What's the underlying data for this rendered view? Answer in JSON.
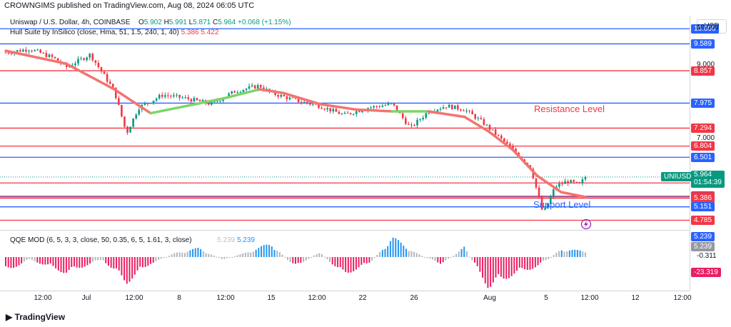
{
  "publisher": "CROWNGIMS published on TradingView.com, Aug 08, 2024 06:05 UTC",
  "legend": {
    "symbol": "Uniswap / U.S. Dollar, 4h, COINBASE",
    "o_label": "O",
    "o_value": "5.902",
    "h_label": "H",
    "h_value": "5.991",
    "l_label": "L",
    "l_value": "5.871",
    "c_label": "C",
    "c_value": "5.964",
    "change": "+0.068 (+1.15%)",
    "hull_title": "Hull Suite by InSilico (close, Hma, 51, 1.5, 240, 1, 40)",
    "hull_v1": "5.386",
    "hull_v2": "5.422"
  },
  "currency": "USD",
  "annotations": {
    "resistance": "Resistance Level",
    "support": "Support Level"
  },
  "qqe": {
    "title": "QQE MOD (6, 5, 3, 3, close, 50, 0.35, 6, 5, 1.61, 3, close)",
    "v1": "5.239",
    "v2": "5.239"
  },
  "branding": "TradingView",
  "colors": {
    "up": "#089981",
    "down": "#f23645",
    "support_line": "#2962ff",
    "resistance_line": "#f23645",
    "hull_down": "#f4736f",
    "hull_up": "#7bd667",
    "qqe_up": "#2196f3",
    "qqe_down": "#e91e63",
    "qqe_neutral": "#b2b5be"
  },
  "chart_data": {
    "type": "candlestick",
    "symbol": "UNIUSD",
    "timeframe": "4h",
    "x_ticks": [
      "12:00",
      "Jul",
      "12:00",
      "8",
      "12:00",
      "15",
      "12:00",
      "22",
      "26",
      "Aug",
      "5",
      "12:00",
      "12",
      "12:00"
    ],
    "y_ticks": [
      "10.000",
      "9.000",
      "7.000"
    ],
    "last_price": {
      "symbol": "UNIUSD",
      "price": "5.964",
      "countdown": "01:54:39"
    },
    "horizontal_levels": [
      {
        "label": "10.000",
        "value": 10.0,
        "type": "support"
      },
      {
        "label": "9.589",
        "value": 9.589,
        "type": "support"
      },
      {
        "label": "8.857",
        "value": 8.857,
        "type": "resistance"
      },
      {
        "label": "7.975",
        "value": 7.975,
        "type": "support"
      },
      {
        "label": "7.294",
        "value": 7.294,
        "type": "resistance"
      },
      {
        "label": "6.804",
        "value": 6.804,
        "type": "resistance"
      },
      {
        "label": "6.501",
        "value": 6.501,
        "type": "support"
      },
      {
        "label": "5.800",
        "value": 5.8,
        "type": "resistance"
      },
      {
        "label": "5.437",
        "value": 5.437,
        "type": "support"
      },
      {
        "label": "5.422",
        "value": 5.422,
        "type": "resistance"
      },
      {
        "label": "5.386",
        "value": 5.386,
        "type": "resistance"
      },
      {
        "label": "5.151",
        "value": 5.151,
        "type": "support"
      },
      {
        "label": "4.785",
        "value": 4.785,
        "type": "resistance"
      }
    ],
    "close_path": [
      [
        0,
        9.35
      ],
      [
        4,
        9.45
      ],
      [
        8,
        9.2
      ],
      [
        10,
        8.95
      ],
      [
        14,
        9.3
      ],
      [
        18,
        8.3
      ],
      [
        20,
        7.15
      ],
      [
        22,
        7.85
      ],
      [
        26,
        8.2
      ],
      [
        30,
        8.1
      ],
      [
        34,
        7.95
      ],
      [
        38,
        8.3
      ],
      [
        42,
        8.45
      ],
      [
        44,
        8.25
      ],
      [
        48,
        8.05
      ],
      [
        52,
        7.9
      ],
      [
        56,
        7.65
      ],
      [
        60,
        7.85
      ],
      [
        64,
        7.95
      ],
      [
        67,
        7.3
      ],
      [
        70,
        7.75
      ],
      [
        73,
        7.9
      ],
      [
        76,
        7.8
      ],
      [
        79,
        7.45
      ],
      [
        82,
        7.0
      ],
      [
        85,
        6.55
      ],
      [
        87,
        6.2
      ],
      [
        89,
        4.95
      ],
      [
        91,
        5.7
      ],
      [
        93,
        5.85
      ],
      [
        95,
        5.75
      ],
      [
        96,
        5.96
      ]
    ],
    "hull_path": [
      [
        0,
        9.4
      ],
      [
        10,
        9.05
      ],
      [
        18,
        8.35
      ],
      [
        24,
        7.7
      ],
      [
        30,
        7.9
      ],
      [
        36,
        8.1
      ],
      [
        42,
        8.35
      ],
      [
        46,
        8.25
      ],
      [
        52,
        7.95
      ],
      [
        58,
        7.8
      ],
      [
        64,
        7.75
      ],
      [
        70,
        7.75
      ],
      [
        76,
        7.6
      ],
      [
        80,
        7.2
      ],
      [
        84,
        6.7
      ],
      [
        88,
        6.0
      ],
      [
        92,
        5.55
      ],
      [
        96,
        5.42
      ]
    ],
    "ylim": [
      4.6,
      10.2
    ],
    "qqe": {
      "bars": [
        [
          0,
          -18
        ],
        [
          4,
          -3
        ],
        [
          10,
          -20
        ],
        [
          16,
          -3
        ],
        [
          20,
          -32
        ],
        [
          24,
          -8
        ],
        [
          28,
          4
        ],
        [
          32,
          9
        ],
        [
          36,
          -3
        ],
        [
          40,
          5
        ],
        [
          44,
          14
        ],
        [
          48,
          -12
        ],
        [
          52,
          6
        ],
        [
          56,
          -22
        ],
        [
          60,
          -9
        ],
        [
          64,
          20
        ],
        [
          68,
          4
        ],
        [
          72,
          -8
        ],
        [
          76,
          10
        ],
        [
          80,
          -38
        ],
        [
          84,
          -22
        ],
        [
          88,
          -12
        ],
        [
          92,
          8
        ],
        [
          96,
          6
        ]
      ],
      "ylim": [
        -35,
        20
      ]
    }
  }
}
